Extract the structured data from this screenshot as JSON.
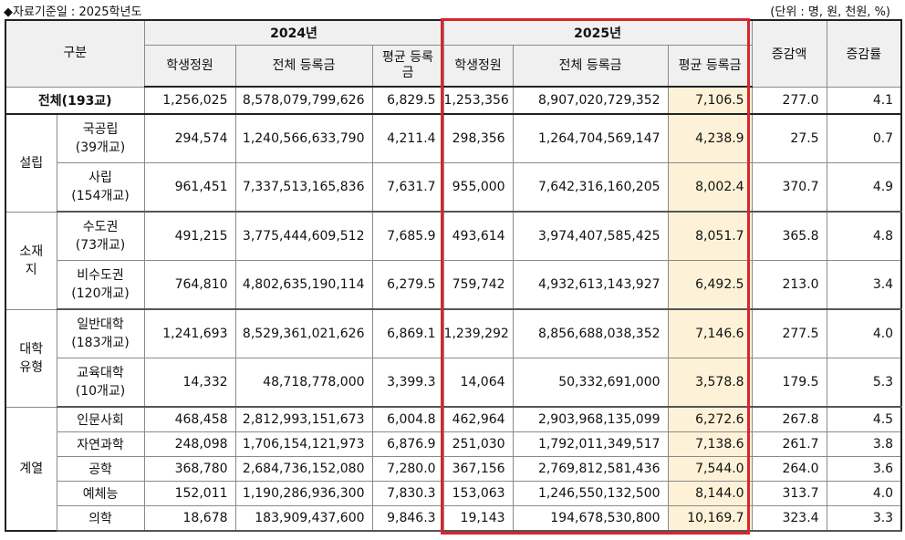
{
  "note": "◆자료기준일 : 2025학년도",
  "unit": "(단위 : 명, 원, 천원, %)",
  "headers": {
    "gubun": "구분",
    "y2024": "2024년",
    "y2025": "2025년",
    "students": "학생정원",
    "total_tuition": "전체 등록금",
    "avg_tuition_2024": "평균 등록금",
    "avg_tuition_2025": "평균 등록금",
    "increase_amount": "증감액",
    "increase_rate": "증감률"
  },
  "total": {
    "label": "전체(193교)",
    "s24": "1,256,025",
    "t24": "8,578,079,799,626",
    "a24": "6,829.5",
    "s25": "1,253,356",
    "t25": "8,907,020,729,352",
    "a25": "7,106.5",
    "inc": "277.0",
    "rate": "4.1"
  },
  "groups": [
    {
      "category": "설립",
      "rows": [
        {
          "name": "국공립",
          "count": "(39개교)",
          "s24": "294,574",
          "t24": "1,240,566,633,790",
          "a24": "4,211.4",
          "s25": "298,356",
          "t25": "1,264,704,569,147",
          "a25": "4,238.9",
          "inc": "27.5",
          "rate": "0.7"
        },
        {
          "name": "사립",
          "count": "(154개교)",
          "s24": "961,451",
          "t24": "7,337,513,165,836",
          "a24": "7,631.7",
          "s25": "955,000",
          "t25": "7,642,316,160,205",
          "a25": "8,002.4",
          "inc": "370.7",
          "rate": "4.9"
        }
      ]
    },
    {
      "category": "소재지",
      "rows": [
        {
          "name": "수도권",
          "count": "(73개교)",
          "s24": "491,215",
          "t24": "3,775,444,609,512",
          "a24": "7,685.9",
          "s25": "493,614",
          "t25": "3,974,407,585,425",
          "a25": "8,051.7",
          "inc": "365.8",
          "rate": "4.8"
        },
        {
          "name": "비수도권",
          "count": "(120개교)",
          "s24": "764,810",
          "t24": "4,802,635,190,114",
          "a24": "6,279.5",
          "s25": "759,742",
          "t25": "4,932,613,143,927",
          "a25": "6,492.5",
          "inc": "213.0",
          "rate": "3.4"
        }
      ]
    },
    {
      "category": "대학유형",
      "rows": [
        {
          "name": "일반대학",
          "count": "(183개교)",
          "s24": "1,241,693",
          "t24": "8,529,361,021,626",
          "a24": "6,869.1",
          "s25": "1,239,292",
          "t25": "8,856,688,038,352",
          "a25": "7,146.6",
          "inc": "277.5",
          "rate": "4.0"
        },
        {
          "name": "교육대학",
          "count": "(10개교)",
          "s24": "14,332",
          "t24": "48,718,778,000",
          "a24": "3,399.3",
          "s25": "14,064",
          "t25": "50,332,691,000",
          "a25": "3,578.8",
          "inc": "179.5",
          "rate": "5.3"
        }
      ]
    },
    {
      "category": "계열",
      "rows": [
        {
          "name": "인문사회",
          "count": "",
          "s24": "468,458",
          "t24": "2,812,993,151,673",
          "a24": "6,004.8",
          "s25": "462,964",
          "t25": "2,903,968,135,099",
          "a25": "6,272.6",
          "inc": "267.8",
          "rate": "4.5"
        },
        {
          "name": "자연과학",
          "count": "",
          "s24": "248,098",
          "t24": "1,706,154,121,973",
          "a24": "6,876.9",
          "s25": "251,030",
          "t25": "1,792,011,349,517",
          "a25": "7,138.6",
          "inc": "261.7",
          "rate": "3.8"
        },
        {
          "name": "공학",
          "count": "",
          "s24": "368,780",
          "t24": "2,684,736,152,080",
          "a24": "7,280.0",
          "s25": "367,156",
          "t25": "2,769,812,581,436",
          "a25": "7,544.0",
          "inc": "264.0",
          "rate": "3.6"
        },
        {
          "name": "예체능",
          "count": "",
          "s24": "152,011",
          "t24": "1,190,286,936,300",
          "a24": "7,830.3",
          "s25": "153,063",
          "t25": "1,246,550,132,500",
          "a25": "8,144.0",
          "inc": "313.7",
          "rate": "4.0"
        },
        {
          "name": "의학",
          "count": "",
          "s24": "18,678",
          "t24": "183,909,437,600",
          "a24": "9,846.3",
          "s25": "19,143",
          "t25": "194,678,530,800",
          "a25": "10,169.7",
          "inc": "323.4",
          "rate": "3.3"
        }
      ]
    }
  ],
  "colors": {
    "highlight": "#fdf2d8",
    "red_box": "#d8262c",
    "header_bg": "#f0f0f0"
  }
}
